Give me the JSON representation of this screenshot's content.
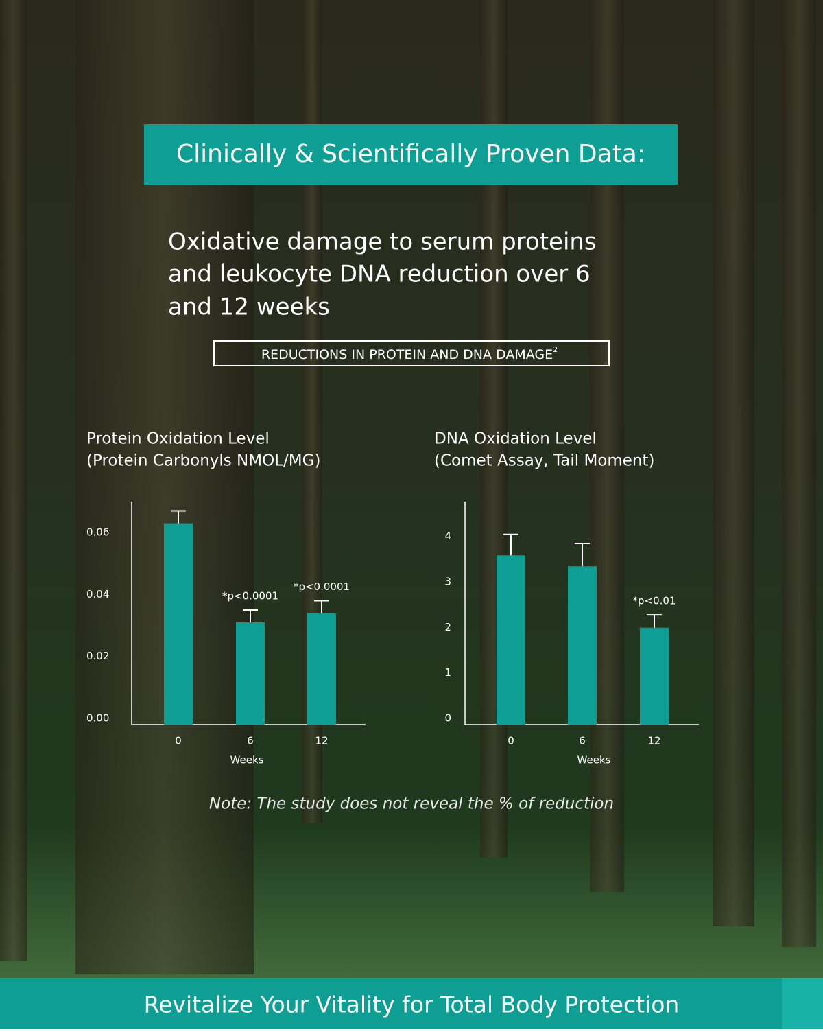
{
  "header": {
    "title": "Clinically & Scientifically Proven Data:",
    "headline": [
      "Oxidative damage to serum proteins",
      "and leukocyte DNA reduction over 6",
      "and 12 weeks"
    ],
    "badge": {
      "text": "REDUCTIONS IN PROTEIN AND DNA DAMAGE",
      "superscript": "2"
    }
  },
  "chart_data": [
    {
      "type": "bar",
      "title": "Protein Oxidation Level",
      "subtitle": "(Protein Carbonyls NMOL/MG)",
      "categories": [
        "0",
        "6",
        "12"
      ],
      "x_label": "Weeks",
      "values": [
        0.065,
        0.033,
        0.036
      ],
      "errors": [
        0.004,
        0.004,
        0.004
      ],
      "annotations": [
        {
          "category": 1,
          "text": "*p<0.0001"
        },
        {
          "category": 2,
          "text": "*p<0.0001"
        }
      ],
      "color": "#0f9e93",
      "ylim": [
        0,
        0.072
      ],
      "yticks": [
        {
          "value": 0,
          "label": "0.00"
        },
        0.02,
        0.04,
        0.06
      ]
    },
    {
      "type": "bar",
      "title": "DNA Oxidation Level",
      "subtitle": "(Comet Assay, Tail Moment)",
      "categories": [
        "0",
        "6",
        "12"
      ],
      "x_label": "Weeks",
      "values": [
        3.72,
        3.48,
        2.13
      ],
      "errors": [
        0.46,
        0.5,
        0.28
      ],
      "annotations": [
        {
          "category": 2,
          "text": "*p<0.01"
        }
      ],
      "color": "#0f9e93",
      "ylim": [
        0,
        4.9
      ],
      "yticks": [
        0,
        1,
        2,
        3,
        4
      ]
    }
  ],
  "note": "Note: The study does not reveal the % of reduction",
  "footer": "Revitalize Your Vitality for Total Body Protection"
}
